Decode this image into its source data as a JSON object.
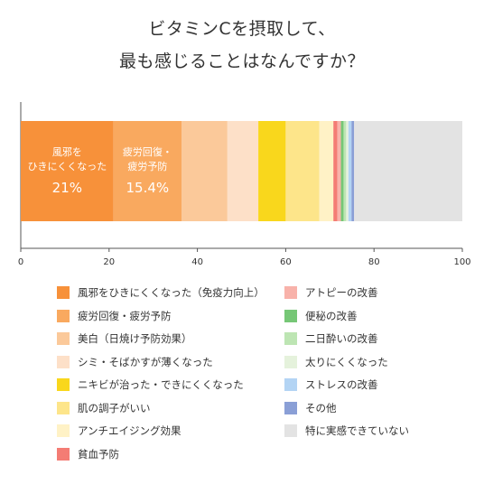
{
  "title_lines": [
    "ビタミンCを摂取して、",
    "最も感じることはなんですか？"
  ],
  "chart_data": {
    "type": "bar",
    "orientation": "horizontal",
    "stacked": true,
    "xlim": [
      0,
      100
    ],
    "xticks": [
      "0",
      "20",
      "40",
      "60",
      "80",
      "100"
    ],
    "grid": false,
    "legend_position": "bottom",
    "series": [
      {
        "name": "風邪をひきにくくなった（免疫力向上）",
        "value": 21,
        "color": "#f7913a",
        "inbar_label": [
          "風邪を",
          "ひきにくくなった"
        ],
        "inbar_value": "21%"
      },
      {
        "name": "疲労回復・疲労予防",
        "value": 15.4,
        "color": "#f9a95f",
        "inbar_label": [
          "疲労回復・",
          "疲労予防"
        ],
        "inbar_value": "15.4%"
      },
      {
        "name": "美白（日焼け予防効果）",
        "value": 10.4,
        "color": "#fbc99a"
      },
      {
        "name": "シミ・そばかすが薄くなった",
        "value": 7.0,
        "color": "#fde0c8"
      },
      {
        "name": "ニキビが治った・できにくくなった",
        "value": 6.2,
        "color": "#f9d71c"
      },
      {
        "name": "肌の調子がいい",
        "value": 7.6,
        "color": "#fde58a"
      },
      {
        "name": "アンチエイジング効果",
        "value": 3.2,
        "color": "#fff2c6"
      },
      {
        "name": "貧血予防",
        "value": 0.9,
        "color": "#f47c74"
      },
      {
        "name": "アトピーの改善",
        "value": 0.8,
        "color": "#f8b2aa"
      },
      {
        "name": "便秘の改善",
        "value": 0.6,
        "color": "#76c776"
      },
      {
        "name": "二日酔いの改善",
        "value": 0.6,
        "color": "#bde5b3"
      },
      {
        "name": "太りにくくなった",
        "value": 0.5,
        "color": "#e5f2dc"
      },
      {
        "name": "ストレスの改善",
        "value": 0.7,
        "color": "#b3d4f4"
      },
      {
        "name": "その他",
        "value": 0.6,
        "color": "#8a9fd6"
      },
      {
        "name": "特に実感できていない",
        "value": 24.5,
        "color": "#e3e3e3"
      }
    ]
  }
}
